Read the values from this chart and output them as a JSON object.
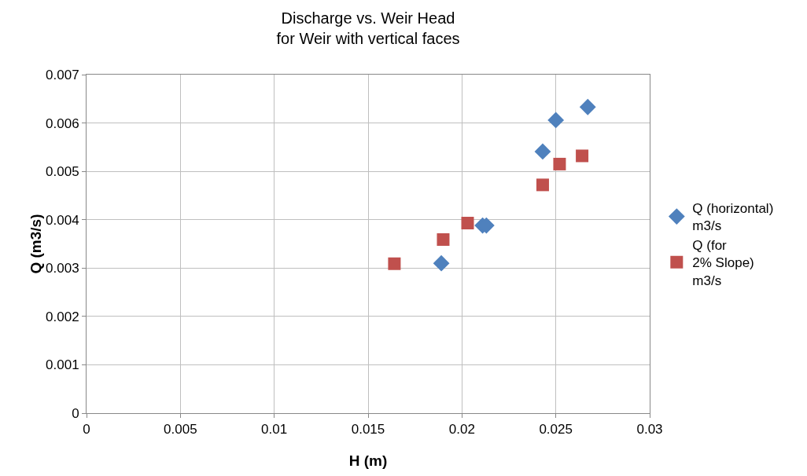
{
  "chart_data": {
    "type": "scatter",
    "title": "Discharge vs. Weir Head\nfor Weir with vertical faces",
    "xlabel": "H (m)",
    "ylabel": "Q (m3/s)",
    "xlim": [
      0,
      0.03
    ],
    "xticks": [
      0,
      0.005,
      0.01,
      0.015,
      0.02,
      0.025,
      0.03
    ],
    "ylim": [
      0,
      0.007
    ],
    "yticks": [
      0,
      0.001,
      0.002,
      0.003,
      0.004,
      0.005,
      0.006,
      0.007
    ],
    "grid": true,
    "legend": "right",
    "series": [
      {
        "name": "Q (horizontal) m3/s",
        "color": "#4f81bd",
        "marker": "diamond",
        "x": [
          0.0189,
          0.0211,
          0.0213,
          0.0243,
          0.025,
          0.0267
        ],
        "values": [
          0.0031,
          0.00388,
          0.00388,
          0.00541,
          0.00606,
          0.00633
        ]
      },
      {
        "name": "Q (for 2% Slope) m3/s",
        "color": "#c0504d",
        "marker": "square",
        "x": [
          0.0164,
          0.019,
          0.0203,
          0.0243,
          0.0252,
          0.0264
        ],
        "values": [
          0.00309,
          0.00359,
          0.00393,
          0.00472,
          0.00515,
          0.00532
        ]
      }
    ]
  }
}
